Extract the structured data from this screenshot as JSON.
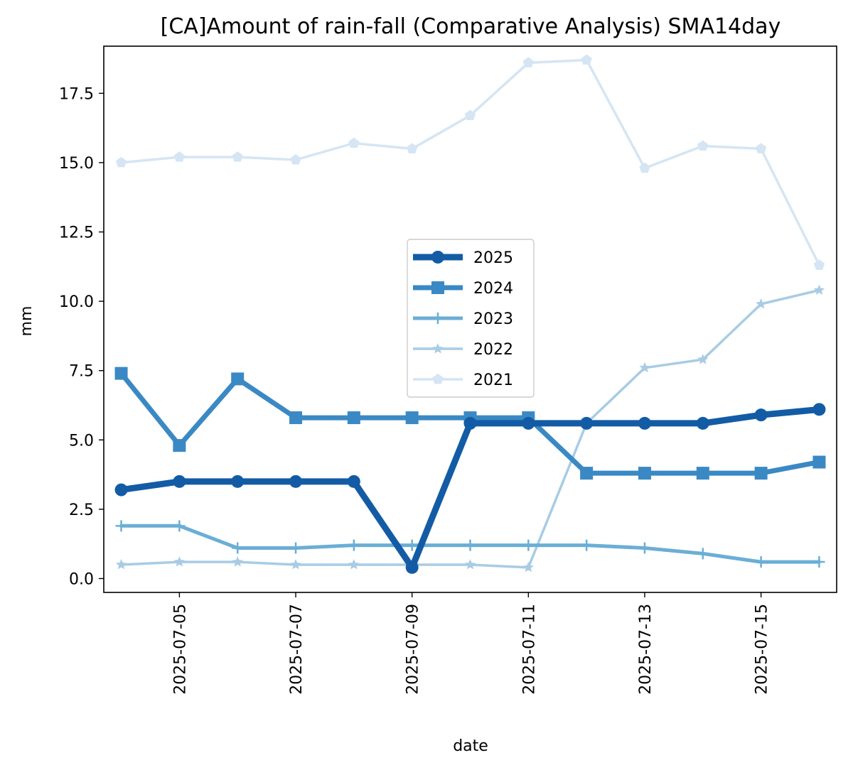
{
  "chart_data": {
    "type": "line",
    "title": "[CA]Amount of rain-fall (Comparative Analysis) SMA14day",
    "xlabel": "date",
    "ylabel": "mm",
    "x": [
      "2025-07-04",
      "2025-07-05",
      "2025-07-06",
      "2025-07-07",
      "2025-07-08",
      "2025-07-09",
      "2025-07-10",
      "2025-07-11",
      "2025-07-12",
      "2025-07-13",
      "2025-07-14",
      "2025-07-15",
      "2025-07-16"
    ],
    "xticks": [
      "2025-07-05",
      "2025-07-07",
      "2025-07-09",
      "2025-07-11",
      "2025-07-13",
      "2025-07-15"
    ],
    "yticks": [
      "0.0",
      "2.5",
      "5.0",
      "7.5",
      "10.0",
      "12.5",
      "15.0",
      "17.5"
    ],
    "ylim": [
      -0.5,
      19.2
    ],
    "xlim": [
      "2025-07-03T16:48",
      "2025-07-16T07:12"
    ],
    "grid": false,
    "legend_position": "center",
    "series": [
      {
        "name": "2025",
        "color": "#135ca5",
        "marker": "circle",
        "linewidth": "thick",
        "values": [
          3.2,
          3.5,
          3.5,
          3.5,
          3.5,
          0.4,
          5.6,
          5.6,
          5.6,
          5.6,
          5.6,
          5.9,
          6.1
        ]
      },
      {
        "name": "2024",
        "color": "#3a89c4",
        "marker": "square",
        "linewidth": "medium-thick",
        "values": [
          7.4,
          4.8,
          7.2,
          5.8,
          5.8,
          5.8,
          5.8,
          5.8,
          3.8,
          3.8,
          3.8,
          3.8,
          4.2
        ]
      },
      {
        "name": "2023",
        "color": "#6baed6",
        "marker": "plus",
        "linewidth": "medium",
        "values": [
          1.9,
          1.9,
          1.1,
          1.1,
          1.2,
          1.2,
          1.2,
          1.2,
          1.2,
          1.1,
          0.9,
          0.6,
          0.6
        ]
      },
      {
        "name": "2022",
        "color": "#a8cce4",
        "marker": "star",
        "linewidth": "thin",
        "values": [
          0.5,
          0.6,
          0.6,
          0.5,
          0.5,
          0.5,
          0.5,
          0.4,
          5.6,
          7.6,
          7.9,
          9.9,
          10.4
        ]
      },
      {
        "name": "2021",
        "color": "#d5e5f3",
        "marker": "pentagon",
        "linewidth": "thin",
        "values": [
          15.0,
          15.2,
          15.2,
          15.1,
          15.7,
          15.5,
          16.7,
          18.6,
          18.7,
          14.8,
          15.6,
          15.5,
          11.3
        ]
      }
    ]
  }
}
